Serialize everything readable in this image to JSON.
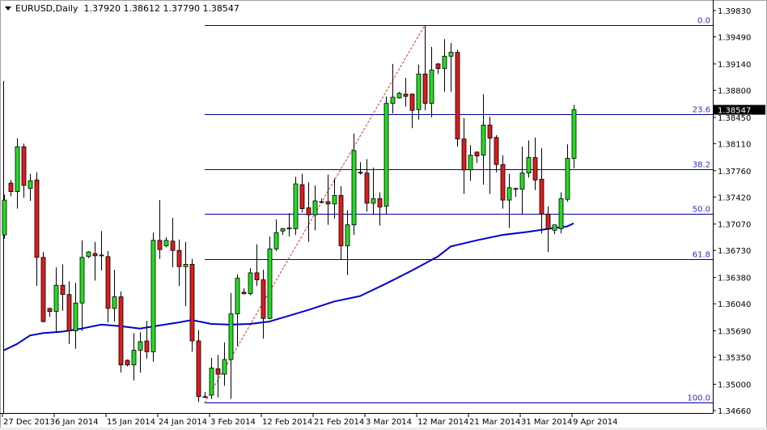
{
  "header": {
    "symbol": "EURUSD,Daily",
    "ohlc": "1.37920 1.38612 1.37790 1.38547"
  },
  "colors": {
    "bull": "#22dd22",
    "bear": "#dd1c1c",
    "candle_outline": "#000000",
    "fib": "#00009a",
    "fib_label": "#3030c0",
    "moving_average": "#0000cc",
    "trend_line": "#e03030",
    "price_tag_bg": "#000000"
  },
  "chart_data": {
    "type": "candlestick",
    "title": "",
    "y_range": [
      1.3466,
      1.3983
    ],
    "y_ticks": [
      "1.39830",
      "1.39490",
      "1.39140",
      "1.38800",
      "1.38450",
      "1.38110",
      "1.37760",
      "1.37420",
      "1.37070",
      "1.36730",
      "1.36380",
      "1.36040",
      "1.35690",
      "1.35350",
      "1.35000",
      "1.34660"
    ],
    "x_ticks": [
      {
        "bar": 0,
        "label": "27 Dec 2013"
      },
      {
        "bar": 8,
        "label": "6 Jan 2014"
      },
      {
        "bar": 16,
        "label": "15 Jan 2014"
      },
      {
        "bar": 24,
        "label": "24 Jan 2014"
      },
      {
        "bar": 32,
        "label": "3 Feb 2014"
      },
      {
        "bar": 40,
        "label": "12 Feb 2014"
      },
      {
        "bar": 48,
        "label": "21 Feb 2014"
      },
      {
        "bar": 56,
        "label": "3 Mar 2014"
      },
      {
        "bar": 64,
        "label": "12 Mar 2014"
      },
      {
        "bar": 72,
        "label": "21 Mar 2014"
      },
      {
        "bar": 80,
        "label": "31 Mar 2014"
      },
      {
        "bar": 88,
        "label": "9 Apr 2014"
      }
    ],
    "current_price": "1.38547",
    "candles_ohlc": [
      [
        1.3693,
        1.3745,
        1.3688,
        1.3738
      ],
      [
        1.376,
        1.3764,
        1.3743,
        1.3749
      ],
      [
        1.3749,
        1.3818,
        1.3727,
        1.3807
      ],
      [
        1.3807,
        1.3811,
        1.3741,
        1.3757
      ],
      [
        1.3753,
        1.3772,
        1.3737,
        1.3763
      ],
      [
        1.3764,
        1.3774,
        1.3627,
        1.3664
      ],
      [
        1.3664,
        1.3671,
        1.358,
        1.3581
      ],
      [
        1.3598,
        1.3599,
        1.3587,
        1.3594
      ],
      [
        1.3594,
        1.3651,
        1.3568,
        1.3628
      ],
      [
        1.3628,
        1.3655,
        1.3595,
        1.3616
      ],
      [
        1.3616,
        1.3633,
        1.3552,
        1.3569
      ],
      [
        1.3569,
        1.3631,
        1.3546,
        1.3605
      ],
      [
        1.3605,
        1.3686,
        1.3569,
        1.3664
      ],
      [
        1.3665,
        1.3672,
        1.3663,
        1.3671
      ],
      [
        1.3669,
        1.3684,
        1.3634,
        1.3666
      ],
      [
        1.3667,
        1.3698,
        1.3647,
        1.3667
      ],
      [
        1.3665,
        1.3672,
        1.358,
        1.3598
      ],
      [
        1.3598,
        1.3648,
        1.3581,
        1.3613
      ],
      [
        1.3613,
        1.362,
        1.3515,
        1.3525
      ],
      [
        1.3531,
        1.3532,
        1.3523,
        1.3525
      ],
      [
        1.3525,
        1.3566,
        1.3505,
        1.3544
      ],
      [
        1.3544,
        1.3567,
        1.3515,
        1.3555
      ],
      [
        1.3556,
        1.3582,
        1.3533,
        1.3542
      ],
      [
        1.3542,
        1.3696,
        1.3529,
        1.3686
      ],
      [
        1.3686,
        1.3738,
        1.3662,
        1.3674
      ],
      [
        1.3679,
        1.369,
        1.3677,
        1.3686
      ],
      [
        1.3685,
        1.3715,
        1.3651,
        1.3673
      ],
      [
        1.3673,
        1.3687,
        1.3627,
        1.3652
      ],
      [
        1.3652,
        1.3684,
        1.3601,
        1.3655
      ],
      [
        1.3655,
        1.3662,
        1.3542,
        1.3556
      ],
      [
        1.3556,
        1.357,
        1.3477,
        1.3484
      ],
      [
        1.3484,
        1.349,
        1.3482,
        1.3484
      ],
      [
        1.3486,
        1.3534,
        1.3481,
        1.3521
      ],
      [
        1.352,
        1.3538,
        1.3483,
        1.3513
      ],
      [
        1.3513,
        1.3554,
        1.3498,
        1.3532
      ],
      [
        1.3532,
        1.3618,
        1.3481,
        1.3591
      ],
      [
        1.3591,
        1.3642,
        1.355,
        1.3637
      ],
      [
        1.3619,
        1.3624,
        1.3616,
        1.3617
      ],
      [
        1.3617,
        1.365,
        1.3615,
        1.3644
      ],
      [
        1.3644,
        1.3681,
        1.3627,
        1.3635
      ],
      [
        1.3635,
        1.3648,
        1.3559,
        1.3585
      ],
      [
        1.3585,
        1.3691,
        1.3584,
        1.3675
      ],
      [
        1.3675,
        1.3713,
        1.3672,
        1.3696
      ],
      [
        1.3698,
        1.3702,
        1.3693,
        1.3701
      ],
      [
        1.3702,
        1.3721,
        1.3691,
        1.3702
      ],
      [
        1.3701,
        1.3768,
        1.3693,
        1.3759
      ],
      [
        1.3758,
        1.3772,
        1.3722,
        1.3727
      ],
      [
        1.3728,
        1.3761,
        1.3684,
        1.3719
      ],
      [
        1.3719,
        1.3757,
        1.3699,
        1.3737
      ],
      [
        1.3736,
        1.374,
        1.3734,
        1.3736
      ],
      [
        1.3736,
        1.3771,
        1.3706,
        1.3733
      ],
      [
        1.3733,
        1.3766,
        1.3714,
        1.3744
      ],
      [
        1.3744,
        1.3756,
        1.3661,
        1.3679
      ],
      [
        1.3679,
        1.3725,
        1.3641,
        1.3706
      ],
      [
        1.3706,
        1.3824,
        1.3693,
        1.3802
      ],
      [
        1.3774,
        1.3787,
        1.3771,
        1.3773
      ],
      [
        1.3773,
        1.3791,
        1.3723,
        1.3734
      ],
      [
        1.3734,
        1.378,
        1.3719,
        1.374
      ],
      [
        1.374,
        1.3748,
        1.3705,
        1.3729
      ],
      [
        1.373,
        1.3872,
        1.372,
        1.3863
      ],
      [
        1.3863,
        1.3914,
        1.385,
        1.3871
      ],
      [
        1.387,
        1.3878,
        1.3869,
        1.3876
      ],
      [
        1.3875,
        1.3896,
        1.3859,
        1.3872
      ],
      [
        1.3875,
        1.3876,
        1.3831,
        1.3854
      ],
      [
        1.3855,
        1.3913,
        1.3842,
        1.3901
      ],
      [
        1.3901,
        1.3964,
        1.3854,
        1.3863
      ],
      [
        1.3863,
        1.3936,
        1.3845,
        1.3906
      ],
      [
        1.3914,
        1.3915,
        1.3901,
        1.3908
      ],
      [
        1.3908,
        1.3946,
        1.3878,
        1.3924
      ],
      [
        1.3924,
        1.3941,
        1.3878,
        1.3929
      ],
      [
        1.3929,
        1.3932,
        1.3807,
        1.3817
      ],
      [
        1.3817,
        1.3844,
        1.3746,
        1.3777
      ],
      [
        1.3777,
        1.3809,
        1.3763,
        1.3796
      ],
      [
        1.38,
        1.3801,
        1.3786,
        1.3795
      ],
      [
        1.3796,
        1.3875,
        1.3758,
        1.3835
      ],
      [
        1.3835,
        1.3846,
        1.3746,
        1.3818
      ],
      [
        1.3819,
        1.3822,
        1.3774,
        1.3784
      ],
      [
        1.3784,
        1.3796,
        1.3727,
        1.3738
      ],
      [
        1.3738,
        1.3772,
        1.3702,
        1.3754
      ],
      [
        1.3753,
        1.3754,
        1.3742,
        1.3753
      ],
      [
        1.3752,
        1.3807,
        1.372,
        1.3773
      ],
      [
        1.3773,
        1.3815,
        1.3767,
        1.3793
      ],
      [
        1.3793,
        1.3819,
        1.3751,
        1.3764
      ],
      [
        1.3765,
        1.3805,
        1.3695,
        1.372
      ],
      [
        1.372,
        1.373,
        1.3671,
        1.3701
      ],
      [
        1.3699,
        1.3706,
        1.3694,
        1.3706
      ],
      [
        1.3701,
        1.3748,
        1.3695,
        1.374
      ],
      [
        1.3739,
        1.381,
        1.3736,
        1.3792
      ],
      [
        1.3792,
        1.38612,
        1.3779,
        1.38547
      ]
    ],
    "moving_average": [
      [
        0,
        1.3544
      ],
      [
        2,
        1.3552
      ],
      [
        4,
        1.3563
      ],
      [
        6,
        1.3566
      ],
      [
        9,
        1.3568
      ],
      [
        12,
        1.3572
      ],
      [
        15,
        1.3577
      ],
      [
        18,
        1.3575
      ],
      [
        21,
        1.3572
      ],
      [
        24,
        1.3576
      ],
      [
        27,
        1.358
      ],
      [
        29,
        1.3583
      ],
      [
        32,
        1.3578
      ],
      [
        35,
        1.3577
      ],
      [
        38,
        1.3578
      ],
      [
        41,
        1.3581
      ],
      [
        43,
        1.3586
      ],
      [
        47,
        1.3596
      ],
      [
        51,
        1.3607
      ],
      [
        55,
        1.3614
      ],
      [
        59,
        1.363
      ],
      [
        63,
        1.3647
      ],
      [
        67,
        1.3665
      ],
      [
        69,
        1.3678
      ],
      [
        73,
        1.3686
      ],
      [
        77,
        1.3693
      ],
      [
        81,
        1.3697
      ],
      [
        85,
        1.3702
      ],
      [
        87,
        1.3704
      ],
      [
        88,
        1.3708
      ]
    ],
    "fibonacci": {
      "from_bar": 31,
      "low": 1.3476,
      "high": 1.3964,
      "levels": [
        {
          "label": "0.0",
          "price": 1.3964
        },
        {
          "label": "23.6",
          "price": 1.3849
        },
        {
          "label": "38.2",
          "price": 1.3778
        },
        {
          "label": "50.0",
          "price": 1.372
        },
        {
          "label": "61.8",
          "price": 1.3662
        },
        {
          "label": "100.0",
          "price": 1.3476
        }
      ]
    },
    "trend_line": {
      "from": [
        31,
        1.3476
      ],
      "to": [
        65,
        1.3964
      ],
      "style": "dashed"
    }
  }
}
